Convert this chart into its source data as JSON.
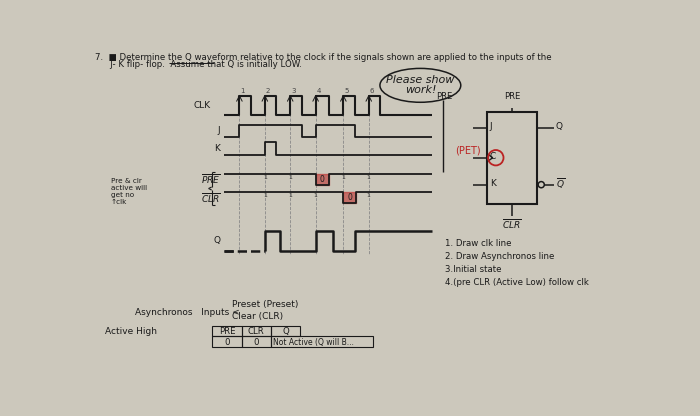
{
  "bg_color": "#ccc8bc",
  "col_dark": "#1a1a1a",
  "col_red": "#bb2222",
  "col_gray": "#888888",
  "title1": "7.  ■ Determine the Q waveform relative to the clock if the signals shown are applied to the inputs of the",
  "title2": "   J- K flip- flop.  Assume that Q is initially LOW.",
  "bubble_text1": "Please show",
  "bubble_text2": "work!",
  "clk_label": "CLK",
  "j_label": "J",
  "k_label": "K",
  "pre_label": "PRE",
  "clr_label": "CLR",
  "q_label": "Q",
  "pet_label": "(PET)",
  "notes": [
    "1. Draw clk line",
    "2. Draw Asynchronos line",
    "3.Initial state",
    "4.(pre CLR (Active Low) follow clk"
  ],
  "pre_clr_note": "Pre & clr\nactive will\nget no\n↑clk",
  "async_text1": "Asynchronos   Inputs <",
  "async_text2": "Preset (Preset)",
  "async_text3": "Clear (CLR)",
  "active_high": "Active High",
  "table_headers": [
    "PRE",
    "CLR",
    "Q"
  ],
  "table_row0": [
    "0",
    "0"
  ],
  "table_row0_q": "Not Active (Q will B..."
}
